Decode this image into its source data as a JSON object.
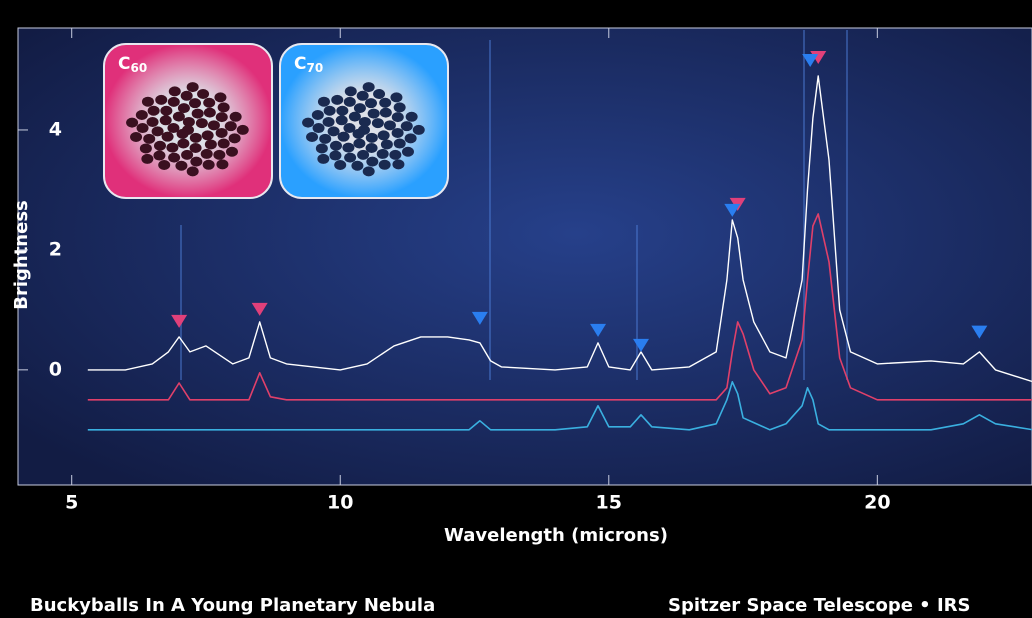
{
  "chart_data": {
    "type": "line",
    "x_label": "Wavelength (microns)",
    "y_label": "Brightness",
    "footer_left": "Buckyballs In A Young Planetary Nebula",
    "footer_right": "Spitzer Space Telescope • IRS",
    "insets": [
      {
        "base": "C",
        "sub": "60",
        "color": "#e0307a"
      },
      {
        "base": "C",
        "sub": "70",
        "color": "#2aa0ff"
      }
    ],
    "xlim": [
      4,
      22.88
    ],
    "ylim": [
      -1.92,
      5.7
    ],
    "xticks": [
      5,
      10,
      15,
      20
    ],
    "yticks": [
      0,
      2,
      4
    ],
    "x": [
      5.3,
      6,
      6.5,
      6.8,
      7,
      7.2,
      7.5,
      8,
      8.3,
      8.5,
      8.7,
      9,
      10,
      10.5,
      11,
      11.5,
      12,
      12.4,
      12.6,
      12.8,
      13,
      14,
      14.6,
      14.8,
      15,
      15.4,
      15.6,
      15.8,
      16.5,
      17,
      17.2,
      17.3,
      17.4,
      17.5,
      17.7,
      18,
      18.3,
      18.6,
      18.7,
      18.8,
      18.9,
      19.1,
      19.3,
      19.5,
      20,
      21,
      21.6,
      21.9,
      22.2,
      22.9
    ],
    "series": [
      {
        "color": "#ffffff",
        "values": [
          0,
          0,
          0.1,
          0.3,
          0.55,
          0.3,
          0.4,
          0.1,
          0.2,
          0.8,
          0.2,
          0.1,
          0,
          0.1,
          0.4,
          0.55,
          0.55,
          0.5,
          0.45,
          0.15,
          0.05,
          0,
          0.05,
          0.45,
          0.05,
          0,
          0.3,
          0,
          0.05,
          0.3,
          1.5,
          2.5,
          2.2,
          1.5,
          0.8,
          0.3,
          0.2,
          1.5,
          3,
          4.2,
          4.9,
          3.5,
          1,
          0.3,
          0.1,
          0.15,
          0.1,
          0.3,
          0,
          -0.2
        ]
      },
      {
        "color": "#e0406a",
        "values": [
          -0.5,
          -0.5,
          -0.5,
          -0.5,
          -0.22,
          -0.5,
          -0.5,
          -0.5,
          -0.5,
          -0.05,
          -0.45,
          -0.5,
          -0.5,
          -0.5,
          -0.5,
          -0.5,
          -0.5,
          -0.5,
          -0.5,
          -0.5,
          -0.5,
          -0.5,
          -0.5,
          -0.5,
          -0.5,
          -0.5,
          -0.5,
          -0.5,
          -0.5,
          -0.5,
          -0.3,
          0.3,
          0.8,
          0.6,
          0,
          -0.4,
          -0.3,
          0.5,
          1.5,
          2.4,
          2.6,
          1.8,
          0.2,
          -0.3,
          -0.5,
          -0.5,
          -0.5,
          -0.5,
          -0.5,
          -0.5
        ]
      },
      {
        "color": "#3ab0e0",
        "values": [
          -1,
          -1,
          -1,
          -1,
          -1,
          -1,
          -1,
          -1,
          -1,
          -1,
          -1,
          -1,
          -1,
          -1,
          -1,
          -1,
          -1,
          -1,
          -0.85,
          -1,
          -1,
          -1,
          -0.95,
          -0.6,
          -0.95,
          -0.95,
          -0.75,
          -0.95,
          -1,
          -0.9,
          -0.5,
          -0.2,
          -0.4,
          -0.8,
          -0.88,
          -1,
          -0.9,
          -0.6,
          -0.3,
          -0.5,
          -0.9,
          -1,
          -1,
          -1,
          -1,
          -1,
          -0.9,
          -0.75,
          -0.9,
          -1
        ]
      }
    ],
    "markers": [
      {
        "x": 7.0,
        "y": 0.8,
        "color": "#e0407a"
      },
      {
        "x": 8.5,
        "y": 1.0,
        "color": "#e0407a"
      },
      {
        "x": 17.4,
        "y": 2.75,
        "color": "#e0407a"
      },
      {
        "x": 18.9,
        "y": 5.2,
        "color": "#e0407a"
      },
      {
        "x": 12.6,
        "y": 0.85,
        "color": "#2a7ef0"
      },
      {
        "x": 14.8,
        "y": 0.65,
        "color": "#2a7ef0"
      },
      {
        "x": 15.6,
        "y": 0.4,
        "color": "#2a7ef0"
      },
      {
        "x": 17.3,
        "y": 2.65,
        "color": "#2a7ef0"
      },
      {
        "x": 18.75,
        "y": 5.15,
        "color": "#2a7ef0"
      },
      {
        "x": 21.9,
        "y": 0.62,
        "color": "#2a7ef0"
      }
    ]
  }
}
